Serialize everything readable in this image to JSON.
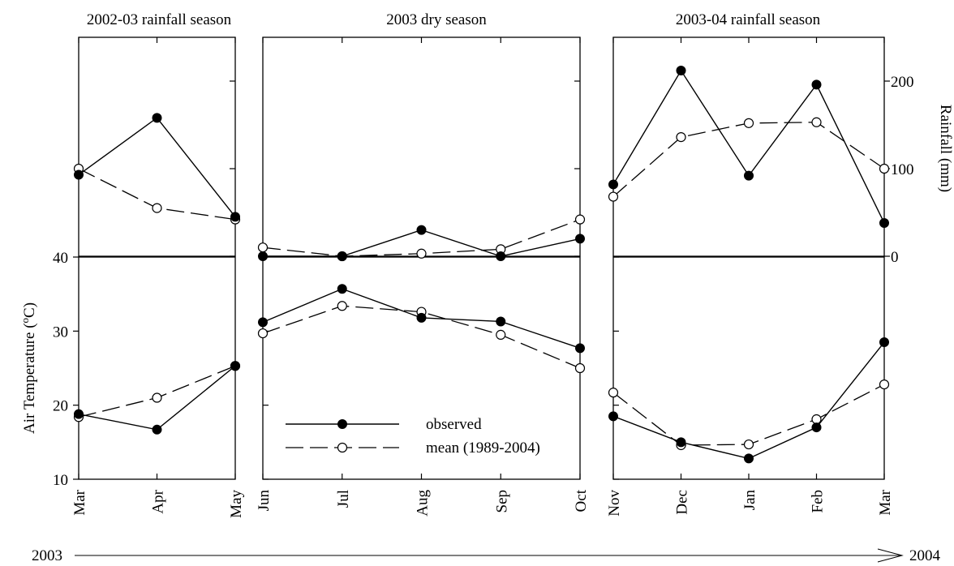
{
  "chart_data": {
    "type": "line",
    "panel_titles": [
      "2002-03 rainfall season",
      "2003 dry season",
      "2003-04 rainfall season"
    ],
    "months": [
      "Mar",
      "Apr",
      "May",
      "Jun",
      "Jul",
      "Aug",
      "Sep",
      "Oct",
      "Nov",
      "Dec",
      "Jan",
      "Feb",
      "Mar"
    ],
    "ylabel_left": "Air Temperature (°C)",
    "ylabel_left_main": "Air Temperature (",
    "ylabel_left_sup": "o",
    "ylabel_left_end": "C)",
    "ylabel_right": "Rainfall (mm)",
    "temperature": {
      "ylim": [
        10,
        40
      ],
      "ticks": [
        "10",
        "20",
        "30",
        "40"
      ]
    },
    "rainfall": {
      "ylim": [
        0,
        250
      ],
      "ticks": [
        "0",
        "100",
        "200"
      ]
    },
    "series": [
      {
        "name": "observed",
        "marker": "filled-circle",
        "rainfall": [
          93,
          158,
          45,
          0,
          0,
          30,
          0,
          20,
          82,
          212,
          92,
          196,
          38
        ],
        "temperature": [
          18.8,
          16.7,
          25.3,
          31.2,
          35.7,
          31.8,
          31.3,
          27.7,
          18.5,
          15.0,
          12.8,
          17.0,
          28.5
        ]
      },
      {
        "name": "mean (1989-2004)",
        "marker": "open-circle",
        "rainfall": [
          100,
          55,
          42,
          10,
          0,
          3,
          8,
          42,
          68,
          136,
          152,
          153,
          100
        ],
        "temperature": [
          18.4,
          21.0,
          25.3,
          29.7,
          33.4,
          32.6,
          29.5,
          25.0,
          21.7,
          14.6,
          14.7,
          18.1,
          22.8
        ]
      }
    ],
    "legend_position": "bottom-center of middle panel",
    "x_axis_start": "2003",
    "x_axis_end": "2004"
  }
}
